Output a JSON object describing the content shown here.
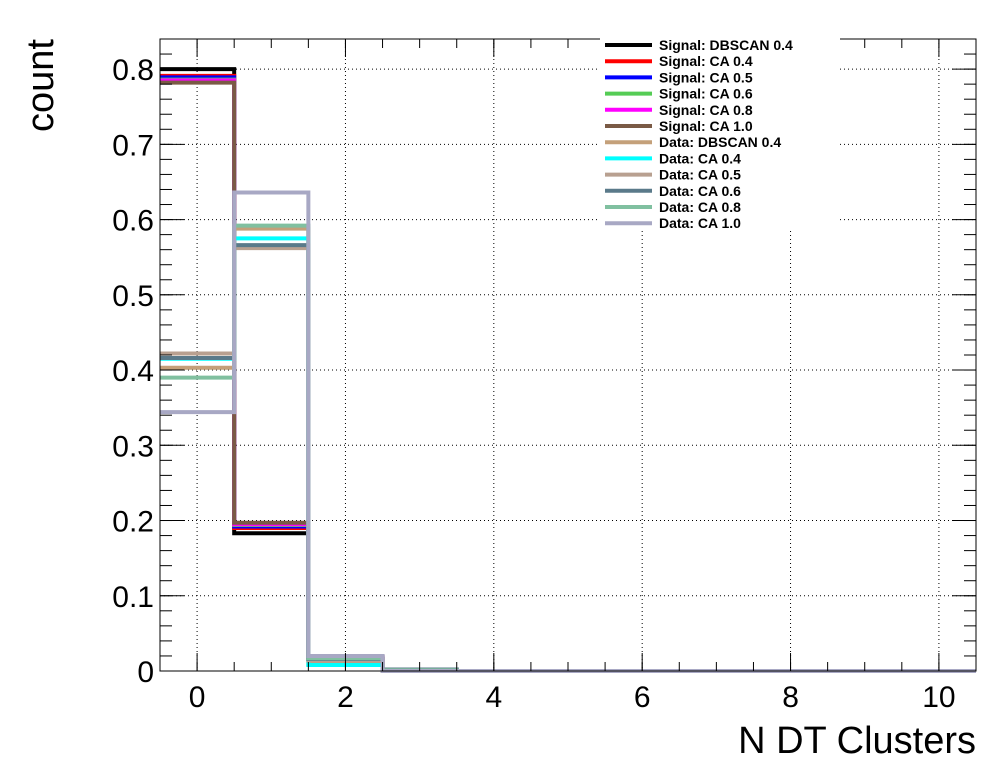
{
  "chart_data": {
    "type": "line",
    "step": true,
    "title": "",
    "xlabel": "N DT Clusters",
    "ylabel": "count",
    "xlim": [
      -0.5,
      10.5
    ],
    "ylim": [
      0,
      0.84
    ],
    "xticks": [
      0,
      2,
      4,
      6,
      8,
      10
    ],
    "yticks": [
      0,
      0.1,
      0.2,
      0.3,
      0.4,
      0.5,
      0.6,
      0.7,
      0.8
    ],
    "ytick_labels": [
      "0",
      "0.1",
      "0.2",
      "0.3",
      "0.4",
      "0.5",
      "0.6",
      "0.7",
      "0.8"
    ],
    "grid": true,
    "legend_position": "top-right",
    "bin_edges": [
      -0.5,
      0.5,
      1.5,
      2.5,
      3.5,
      4.5,
      5.5,
      6.5,
      7.5,
      8.5,
      9.5,
      10.5
    ],
    "series": [
      {
        "name": "Signal: DBSCAN 0.4",
        "color": "#000000",
        "values": [
          0.8,
          0.183,
          0.016,
          0.001,
          0,
          0,
          0,
          0,
          0,
          0,
          0
        ]
      },
      {
        "name": "Signal: CA 0.4",
        "color": "#ff0000",
        "values": [
          0.791,
          0.19,
          0.018,
          0.001,
          0,
          0,
          0,
          0,
          0,
          0,
          0
        ]
      },
      {
        "name": "Signal: CA 0.5",
        "color": "#0000ff",
        "values": [
          0.789,
          0.192,
          0.018,
          0.001,
          0,
          0,
          0,
          0,
          0,
          0,
          0
        ]
      },
      {
        "name": "Signal: CA 0.6",
        "color": "#55cc55",
        "values": [
          0.786,
          0.194,
          0.019,
          0.001,
          0,
          0,
          0,
          0,
          0,
          0,
          0
        ]
      },
      {
        "name": "Signal: CA 0.8",
        "color": "#ff00ff",
        "values": [
          0.785,
          0.195,
          0.019,
          0.001,
          0,
          0,
          0,
          0,
          0,
          0,
          0
        ]
      },
      {
        "name": "Signal: CA 1.0",
        "color": "#7a5a45",
        "values": [
          0.782,
          0.197,
          0.019,
          0.002,
          0,
          0,
          0,
          0,
          0,
          0,
          0
        ]
      },
      {
        "name": "Data: DBSCAN 0.4",
        "color": "#c4a07a",
        "values": [
          0.403,
          0.588,
          0.009,
          0,
          0,
          0,
          0,
          0,
          0,
          0,
          0
        ]
      },
      {
        "name": "Data: CA 0.4",
        "color": "#00ffff",
        "values": [
          0.415,
          0.575,
          0.008,
          0.002,
          0,
          0,
          0,
          0,
          0,
          0,
          0
        ]
      },
      {
        "name": "Data: CA 0.5",
        "color": "#b8a090",
        "values": [
          0.422,
          0.562,
          0.014,
          0.002,
          0,
          0,
          0,
          0,
          0,
          0,
          0
        ]
      },
      {
        "name": "Data: CA 0.6",
        "color": "#5a7a8a",
        "values": [
          0.416,
          0.566,
          0.016,
          0.002,
          0,
          0,
          0,
          0,
          0,
          0,
          0
        ]
      },
      {
        "name": "Data: CA 0.8",
        "color": "#80c0a0",
        "values": [
          0.39,
          0.592,
          0.017,
          0.001,
          0,
          0,
          0,
          0,
          0,
          0,
          0
        ]
      },
      {
        "name": "Data: CA 1.0",
        "color": "#a8a8c4",
        "values": [
          0.344,
          0.636,
          0.02,
          0,
          0,
          0,
          0,
          0,
          0,
          0,
          0
        ]
      }
    ]
  }
}
